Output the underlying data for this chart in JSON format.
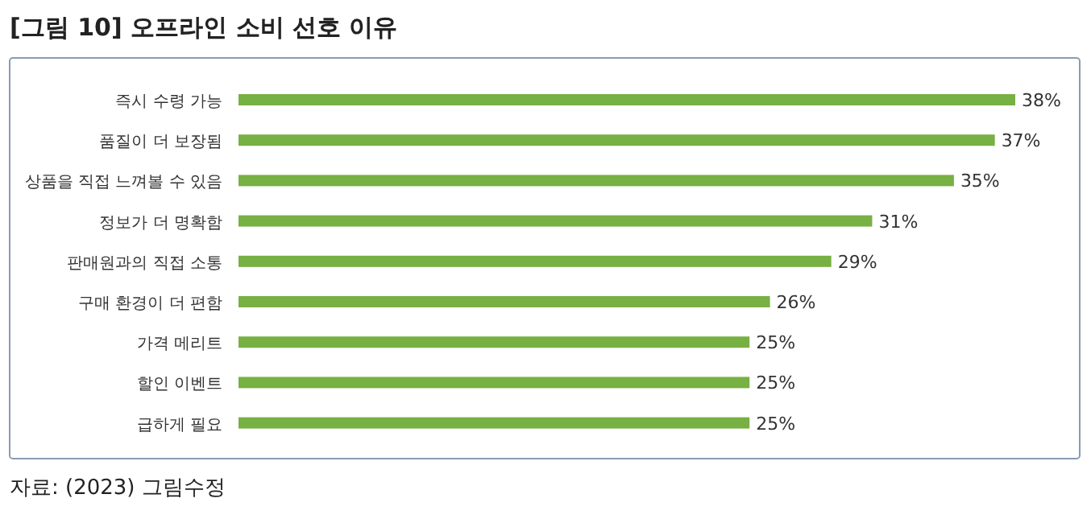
{
  "chart_data": {
    "type": "bar",
    "orientation": "horizontal",
    "title": "[그림 10] 오프라인 소비 선호 이유",
    "categories": [
      "즉시 수령 가능",
      "품질이 더 보장됨",
      "상품을 직접 느껴볼 수 있음",
      "정보가 더 명확함",
      "판매원과의 직접 소통",
      "구매 환경이 더 편함",
      "가격 메리트",
      "할인 이벤트",
      "급하게 필요"
    ],
    "values": [
      38,
      37,
      35,
      31,
      29,
      26,
      25,
      25,
      25
    ],
    "value_labels": [
      "38%",
      "37%",
      "35%",
      "31%",
      "29%",
      "26%",
      "25%",
      "25%",
      "25%"
    ],
    "color": "#77b043",
    "annotations": [
      "자료: (2023) 그림수정"
    ]
  }
}
